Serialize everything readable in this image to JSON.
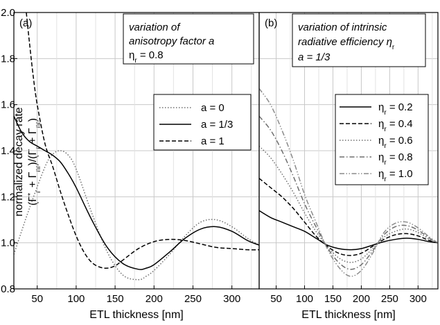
{
  "colors": {
    "axis": "#000000",
    "grid": "#c8c8c8",
    "series_solid": "#000000",
    "series_gray": "#6e6e6e"
  },
  "y_axis": {
    "label_line1": "normalized decay rate",
    "label_line2": "(Γ*r + Γnr)/(Γr + Γnr)",
    "ticks": [
      "0.8",
      "1.0",
      "1.2",
      "1.4",
      "1.6",
      "1.8",
      "2.0"
    ]
  },
  "chart_data": [
    {
      "type": "line",
      "panel_tag": "(a)",
      "xlabel": "ETL thickness [nm]",
      "ylabel": "normalized decay rate (Γ*r + Γnr)/(Γr + Γnr)",
      "xlim": [
        20,
        335
      ],
      "ylim": [
        0.8,
        2.0
      ],
      "xticks": [
        50,
        100,
        150,
        200,
        250,
        300
      ],
      "yticks": [
        0.8,
        1.0,
        1.2,
        1.4,
        1.6,
        1.8,
        2.0
      ],
      "grid": true,
      "annotation": {
        "line1": "variation of",
        "line2": "anisotropy factor a",
        "line3_symbol": "η",
        "line3_sub": "r",
        "line3_rest": " = 0.8"
      },
      "legend_position": "right-middle",
      "series": [
        {
          "name": "a = 0",
          "dash": "dotted",
          "color": "#6e6e6e",
          "x": [
            20,
            40,
            60,
            70,
            80,
            90,
            100,
            120,
            140,
            160,
            180,
            190,
            200,
            220,
            240,
            260,
            280,
            300,
            320,
            335
          ],
          "y": [
            0.95,
            1.15,
            1.33,
            1.385,
            1.4,
            1.38,
            1.32,
            1.13,
            0.96,
            0.86,
            0.84,
            0.855,
            0.88,
            0.95,
            1.03,
            1.09,
            1.1,
            1.07,
            1.02,
            0.99
          ]
        },
        {
          "name": "a = 1/3",
          "dash": "solid",
          "color": "#000000",
          "x": [
            20,
            30,
            40,
            50,
            60,
            70,
            80,
            90,
            100,
            120,
            140,
            160,
            180,
            190,
            200,
            220,
            240,
            260,
            280,
            300,
            320,
            335
          ],
          "y": [
            1.55,
            1.48,
            1.44,
            1.42,
            1.4,
            1.38,
            1.35,
            1.3,
            1.24,
            1.1,
            0.98,
            0.91,
            0.885,
            0.89,
            0.905,
            0.96,
            1.02,
            1.06,
            1.07,
            1.05,
            1.01,
            0.99
          ]
        },
        {
          "name": "a = 1",
          "dash": "dashed",
          "color": "#000000",
          "x": [
            36,
            40,
            45,
            50,
            60,
            70,
            80,
            90,
            100,
            110,
            120,
            130,
            140,
            150,
            160,
            180,
            200,
            220,
            240,
            260,
            280,
            300,
            320,
            335
          ],
          "y": [
            2.0,
            1.87,
            1.72,
            1.6,
            1.43,
            1.33,
            1.22,
            1.12,
            1.03,
            0.96,
            0.915,
            0.895,
            0.89,
            0.9,
            0.925,
            0.975,
            1.005,
            1.015,
            1.01,
            0.995,
            0.98,
            0.975,
            0.97,
            0.97
          ]
        }
      ]
    },
    {
      "type": "line",
      "panel_tag": "(b)",
      "xlabel": "ETL thickness [nm]",
      "xlim": [
        20,
        335
      ],
      "ylim": [
        0.8,
        2.0
      ],
      "xticks": [
        50,
        100,
        150,
        200,
        250,
        300
      ],
      "yticks": [
        0.8,
        1.0,
        1.2,
        1.4,
        1.6,
        1.8,
        2.0
      ],
      "grid": true,
      "annotation": {
        "line1": "variation of intrinsic",
        "line2_text": "radiative efficiency ",
        "line2_symbol": "η",
        "line2_sub": "r",
        "line3": "a = 1/3"
      },
      "legend_position": "right-middle",
      "series": [
        {
          "name_symbol": "η",
          "name_sub": "r",
          "name_value": " = 0.2",
          "dash": "solid",
          "color": "#000000",
          "x": [
            20,
            40,
            60,
            80,
            100,
            120,
            140,
            160,
            180,
            200,
            220,
            240,
            260,
            280,
            300,
            320,
            335
          ],
          "y": [
            1.14,
            1.11,
            1.09,
            1.07,
            1.05,
            1.02,
            0.99,
            0.975,
            0.97,
            0.975,
            0.99,
            1.005,
            1.015,
            1.02,
            1.015,
            1.005,
            1.0
          ]
        },
        {
          "name_symbol": "η",
          "name_sub": "r",
          "name_value": " = 0.4",
          "dash": "dashed",
          "color": "#000000",
          "x": [
            20,
            40,
            60,
            80,
            100,
            120,
            140,
            160,
            180,
            200,
            220,
            240,
            260,
            280,
            300,
            320,
            335
          ],
          "y": [
            1.28,
            1.24,
            1.2,
            1.15,
            1.09,
            1.03,
            0.985,
            0.955,
            0.945,
            0.955,
            0.985,
            1.015,
            1.035,
            1.04,
            1.03,
            1.01,
            1.0
          ]
        },
        {
          "name_symbol": "η",
          "name_sub": "r",
          "name_value": " = 0.6",
          "dash": "dotted",
          "color": "#6e6e6e",
          "x": [
            20,
            40,
            60,
            80,
            100,
            120,
            140,
            160,
            180,
            200,
            220,
            240,
            260,
            280,
            300,
            320,
            335
          ],
          "y": [
            1.42,
            1.37,
            1.3,
            1.22,
            1.13,
            1.05,
            0.985,
            0.935,
            0.915,
            0.93,
            0.975,
            1.025,
            1.05,
            1.06,
            1.045,
            1.015,
            1.0
          ]
        },
        {
          "name_symbol": "η",
          "name_sub": "r",
          "name_value": " = 0.8",
          "dash": "dashdot",
          "color": "#6e6e6e",
          "x": [
            20,
            40,
            60,
            80,
            100,
            120,
            140,
            160,
            180,
            200,
            220,
            240,
            260,
            280,
            300,
            320,
            335
          ],
          "y": [
            1.55,
            1.49,
            1.4,
            1.29,
            1.17,
            1.07,
            0.98,
            0.915,
            0.885,
            0.905,
            0.965,
            1.035,
            1.07,
            1.075,
            1.055,
            1.02,
            1.0
          ]
        },
        {
          "name_symbol": "η",
          "name_sub": "r",
          "name_value": " = 1.0",
          "dash": "dashdotdot",
          "color": "#8a8a8a",
          "x": [
            20,
            40,
            60,
            80,
            100,
            120,
            140,
            160,
            180,
            200,
            220,
            240,
            260,
            280,
            300,
            320,
            335
          ],
          "y": [
            1.67,
            1.6,
            1.49,
            1.36,
            1.21,
            1.09,
            0.975,
            0.895,
            0.855,
            0.88,
            0.955,
            1.045,
            1.085,
            1.09,
            1.065,
            1.025,
            1.0
          ]
        }
      ]
    }
  ]
}
